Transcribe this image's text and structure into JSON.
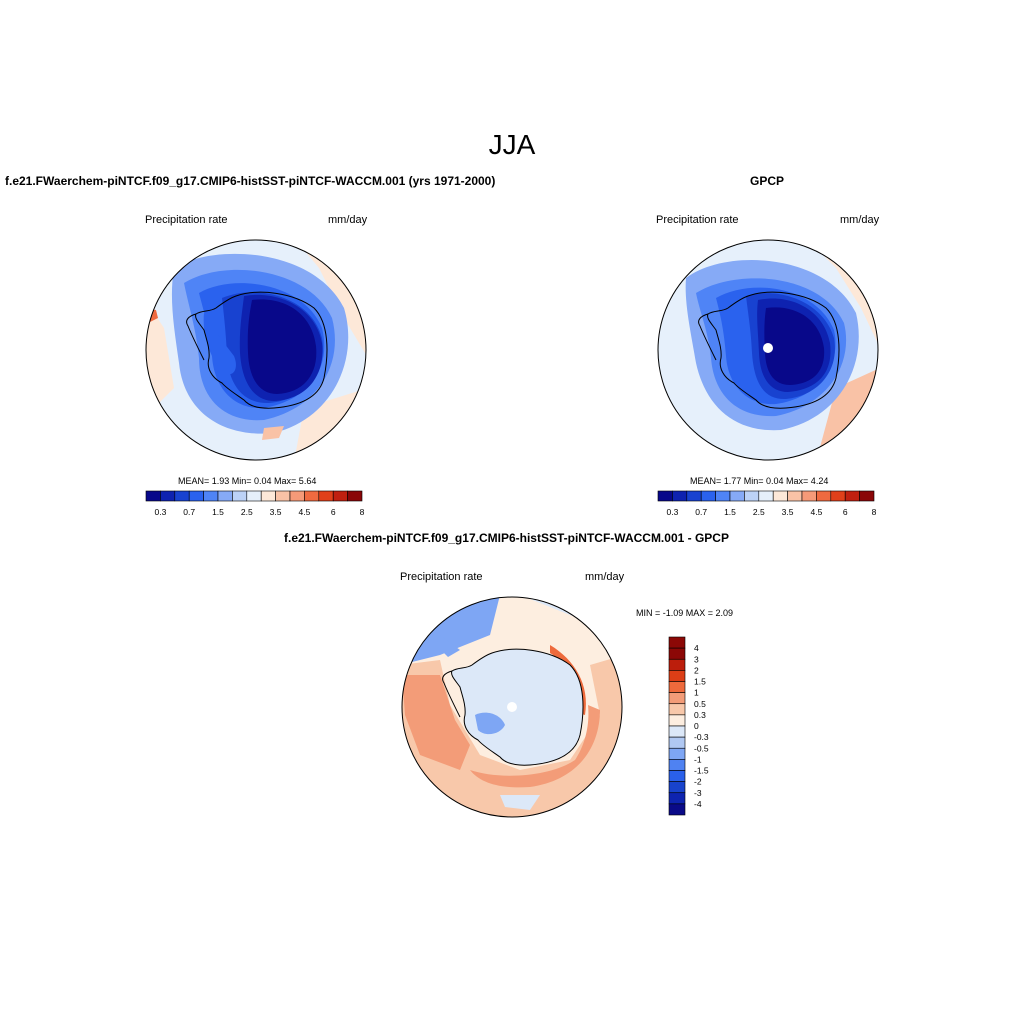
{
  "main_title": "JJA",
  "colors": {
    "abs_scale": [
      "#08088a",
      "#0e22b0",
      "#1842d0",
      "#2a62ee",
      "#4f84f6",
      "#86aaf6",
      "#bcd2f6",
      "#e6f0fb",
      "#fde8d8",
      "#f9c2a6",
      "#f59a78",
      "#ef6a40",
      "#e0401a",
      "#c02010",
      "#8a0608"
    ],
    "diff_scale": [
      "#0a0a88",
      "#0e24b0",
      "#1843cc",
      "#2a60ea",
      "#4f82f2",
      "#7ea6f4",
      "#b0c8f2",
      "#dce8f8",
      "#fdeee0",
      "#f8c8aa",
      "#f39c78",
      "#ee6a3c",
      "#dc3e16",
      "#bc1e0c",
      "#8c0806"
    ]
  },
  "panels": {
    "model": {
      "title": "f.e21.FWaerchem-piNTCF.f09_g17.CMIP6-histSST-piNTCF-WACCM.001 (yrs 1971-2000)",
      "variable": "Precipitation rate",
      "units": "mm/day",
      "stats_line": "MEAN=   1.93  Min=   0.04  Max=   5.64"
    },
    "obs": {
      "title": "GPCP",
      "variable": "Precipitation rate",
      "units": "mm/day",
      "stats_line": "MEAN=   1.77  Min=   0.04  Max=   4.24"
    },
    "diff": {
      "title": "f.e21.FWaerchem-piNTCF.f09_g17.CMIP6-histSST-piNTCF-WACCM.001 - GPCP",
      "variable": "Precipitation rate",
      "units": "mm/day",
      "stats_line": "MIN =  -1.09 MAX =   2.09"
    }
  },
  "colorbar_abs": {
    "labels": [
      "0.3",
      "0.7",
      "1.5",
      "2.5",
      "3.5",
      "4.5",
      "6",
      "8"
    ]
  },
  "colorbar_diff": {
    "labels": [
      "4",
      "3",
      "2",
      "1.5",
      "1",
      "0.5",
      "0.3",
      "0",
      "-0.3",
      "-0.5",
      "-1",
      "-1.5",
      "-2",
      "-3",
      "-4"
    ]
  }
}
